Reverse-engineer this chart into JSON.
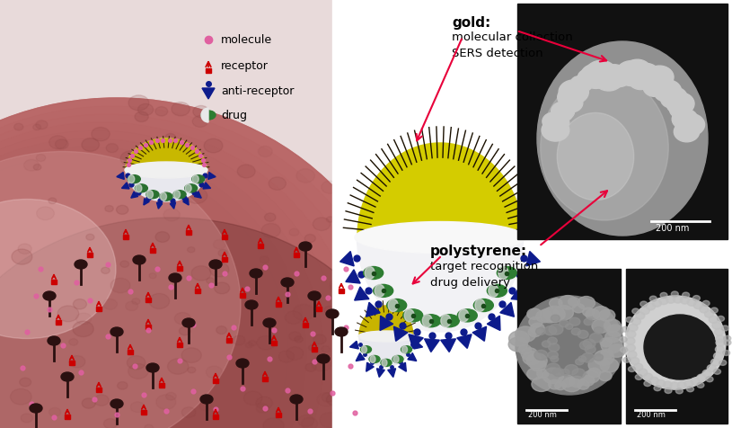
{
  "figure_width": 8.15,
  "figure_height": 4.77,
  "dpi": 100,
  "bg_color": "#ffffff",
  "title_gold": "gold:",
  "text_gold": "molecular collection\nSERS detection",
  "title_ps": "polystyrene:",
  "text_ps": "target recognition\ndrug delivery",
  "legend_labels": [
    "molecule",
    "receptor",
    "anti-receptor",
    "drug"
  ],
  "scale_bar_text": "200 nm",
  "arrow_color": "#e8003a",
  "gold_color": "#d4cc00",
  "ps_color": "#f0f0f0",
  "blue_color": "#0d1b8c",
  "green_color": "#2e7d32",
  "cell_color": "#b87878",
  "cell_bg": "#d4b0b0"
}
